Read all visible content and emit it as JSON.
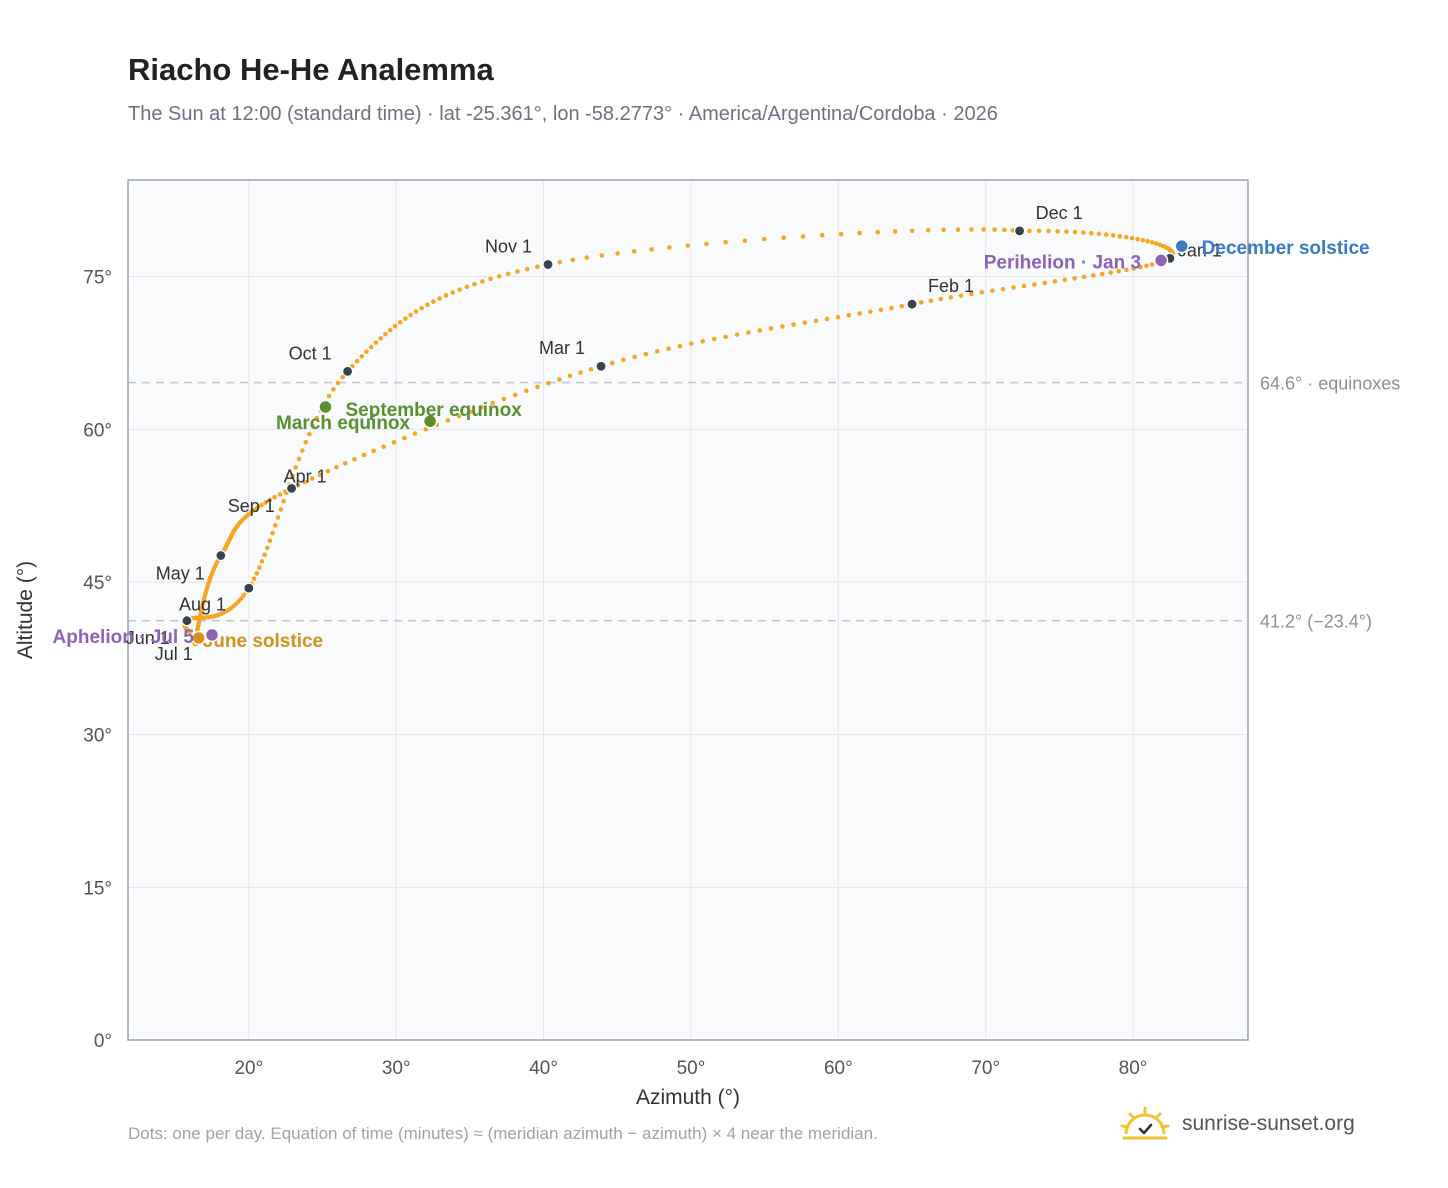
{
  "header": {
    "title": "Riacho He-He Analemma",
    "subtitle": "The Sun at 12:00 (standard time) · lat -25.361°, lon -58.2773° · America/Argentina/Cordoba · 2026"
  },
  "footer": {
    "footnote": "Dots: one per day. Equation of time (minutes) ≈ (meridian azimuth − azimuth) × 4 near the meridian.",
    "brand": "sunrise-sunset.org"
  },
  "colors": {
    "curve": "#f5a623",
    "month_marker": "#374151",
    "equinox": "#5a8f2e",
    "june_solstice": "#d4921a",
    "december_solstice": "#3b7ac2",
    "apsis": "#8e63b5",
    "plot_bg": "#f8fafc",
    "grid": "#e5e7eb",
    "reference_line": "#c3c8cf"
  },
  "chart_data": {
    "type": "scatter",
    "xlabel": "Azimuth (°)",
    "ylabel": "Altitude (°)",
    "xlim": [
      11.8,
      87.8
    ],
    "ylim": [
      0,
      84.5
    ],
    "x_ticks": [
      20,
      30,
      40,
      50,
      60,
      70,
      80
    ],
    "x_tick_labels": [
      "20°",
      "30°",
      "40°",
      "50°",
      "60°",
      "70°",
      "80°"
    ],
    "y_ticks": [
      0,
      15,
      30,
      45,
      60,
      75
    ],
    "y_tick_labels": [
      "0°",
      "15°",
      "30°",
      "45°",
      "60°",
      "75°"
    ],
    "grid": true,
    "reference_lines": [
      {
        "y": 64.6,
        "label": "64.6° · equinoxes"
      },
      {
        "y": 41.2,
        "label": "41.2° (−23.4°)"
      }
    ],
    "month_markers": [
      {
        "label": "Jan 1",
        "x": 82.5,
        "y": 76.8
      },
      {
        "label": "Feb 1",
        "x": 65.0,
        "y": 72.3
      },
      {
        "label": "Mar 1",
        "x": 43.9,
        "y": 66.2
      },
      {
        "label": "Apr 1",
        "x": 22.9,
        "y": 54.2
      },
      {
        "label": "May 1",
        "x": 18.1,
        "y": 47.6
      },
      {
        "label": "Jun 1",
        "x": 16.4,
        "y": 39.6
      },
      {
        "label": "Jul 1",
        "x": 16.6,
        "y": 39.5
      },
      {
        "label": "Aug 1",
        "x": 15.8,
        "y": 41.2
      },
      {
        "label": "Sep 1",
        "x": 20.0,
        "y": 44.4
      },
      {
        "label": "Oct 1",
        "x": 26.7,
        "y": 65.7
      },
      {
        "label": "Nov 1",
        "x": 40.3,
        "y": 76.2
      },
      {
        "label": "Dec 1",
        "x": 72.3,
        "y": 79.5
      }
    ],
    "events": [
      {
        "label": "March equinox",
        "x": 32.3,
        "y": 60.8,
        "kind": "equinox"
      },
      {
        "label": "September equinox",
        "x": 25.2,
        "y": 62.2,
        "kind": "equinox"
      },
      {
        "label": "June solstice",
        "x": 16.6,
        "y": 39.5,
        "kind": "june_solstice"
      },
      {
        "label": "December solstice",
        "x": 83.3,
        "y": 78.0,
        "kind": "december_solstice"
      },
      {
        "label": "Perihelion · Jan 3",
        "x": 81.9,
        "y": 76.6,
        "kind": "apsis"
      },
      {
        "label": "Aphelion · Jul 5",
        "x": 17.5,
        "y": 39.8,
        "kind": "apsis"
      }
    ]
  }
}
